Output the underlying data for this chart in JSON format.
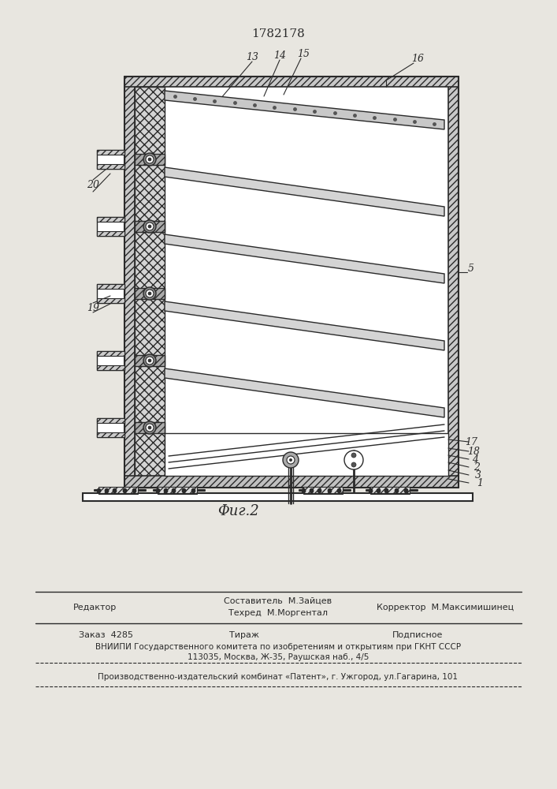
{
  "patent_number": "1782178",
  "fig_label": "Φиг.2",
  "bg_color": "#e8e6e0",
  "lc": "#2a2a2a",
  "footer": {
    "editor": "Редактор",
    "compiler": "Составитель  М.Зайцев",
    "techred": "Техред  М.Моргентал",
    "corrector": "Корректор  М.Максимишинец",
    "order": "Заказ  4285",
    "tirazh": "Тираж",
    "podpisnoe": "Подписное",
    "vniipи": "ВНИИПИ Государственного комитета по изобретениям и открытиям при ГКНТ СССР",
    "address": "113035, Москва, Ж-35, Раушская наб., 4/5",
    "publisher": "Производственно-издательский комбинат «Патент», г. Ужгород, ул.Гагарина, 101"
  }
}
